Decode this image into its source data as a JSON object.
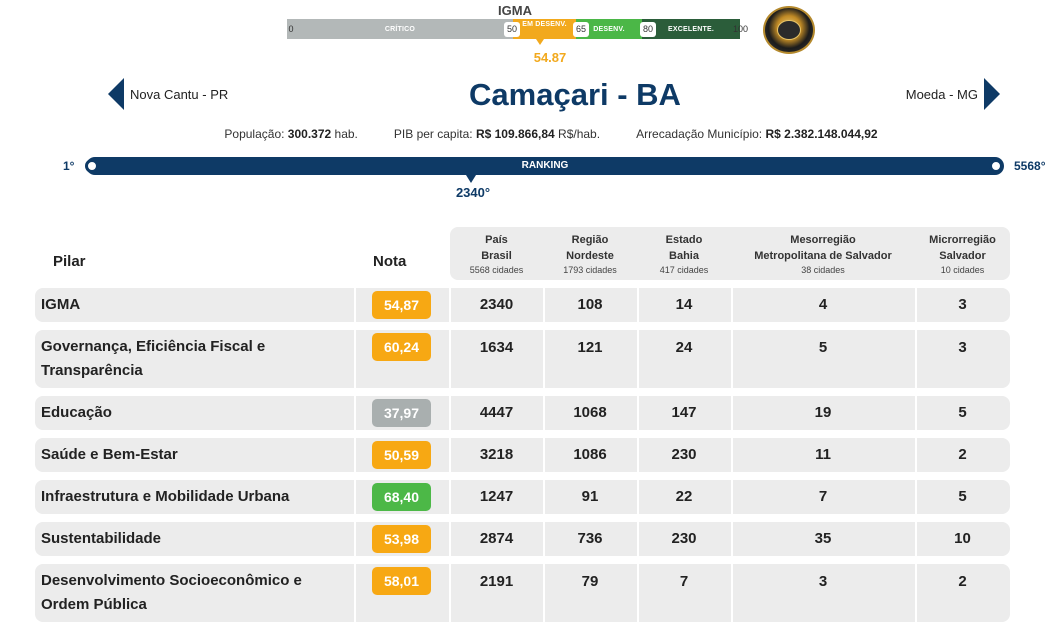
{
  "scale": {
    "title": "IGMA",
    "segments": {
      "critico": "CRÍTICO",
      "em_desenv": "EM DESENV.",
      "desenv": "DESENV.",
      "excelente": "EXCELENTE."
    },
    "ticks": [
      "0",
      "50",
      "65",
      "80",
      "100"
    ],
    "value": "54.87",
    "value_fraction": 0.5487,
    "colors": {
      "critico": "#b3b8b8",
      "em_desenv": "#f2a91d",
      "desenv": "#4bb747",
      "excelente": "#2b5d3a"
    }
  },
  "seal_icon": "award-seal-icon",
  "nav": {
    "prev_label": "Nova Cantu - PR",
    "next_label": "Moeda - MG"
  },
  "title": "Camaçari - BA",
  "stats": {
    "populacao_label": "População:",
    "populacao_value": "300.372",
    "populacao_unit": "hab.",
    "pib_label": "PIB per capita:",
    "pib_value": "R$ 109.866,84",
    "pib_unit": "R$/hab.",
    "arrecadacao_label": "Arrecadação Município:",
    "arrecadacao_value": "R$ 2.382.148.044,92"
  },
  "ranking": {
    "label": "RANKING",
    "first": "1°",
    "last": "5568°",
    "position": "2340°"
  },
  "table": {
    "headers": {
      "pilar": "Pilar",
      "nota": "Nota",
      "columns": [
        {
          "l1": "País",
          "l2": "Brasil",
          "l3": "5568 cidades"
        },
        {
          "l1": "Região",
          "l2": "Nordeste",
          "l3": "1793 cidades"
        },
        {
          "l1": "Estado",
          "l2": "Bahia",
          "l3": "417 cidades"
        },
        {
          "l1": "Mesorregião",
          "l2": "Metropolitana de Salvador",
          "l3": "38 cidades"
        },
        {
          "l1": "Microrregião",
          "l2": "Salvador",
          "l3": "10 cidades"
        }
      ]
    },
    "rows": [
      {
        "label1": "IGMA",
        "label2": "",
        "nota": "54,87",
        "color": "#f7a813",
        "values": [
          "2340",
          "108",
          "14",
          "4",
          "3"
        ]
      },
      {
        "label1": "Governança, Eficiência Fiscal e",
        "label2": "Transparência",
        "nota": "60,24",
        "color": "#f7a813",
        "values": [
          "1634",
          "121",
          "24",
          "5",
          "3"
        ]
      },
      {
        "label1": "Educação",
        "label2": "",
        "nota": "37,97",
        "color": "#a9afaf",
        "values": [
          "4447",
          "1068",
          "147",
          "19",
          "5"
        ]
      },
      {
        "label1": "Saúde e Bem-Estar",
        "label2": "",
        "nota": "50,59",
        "color": "#f7a813",
        "values": [
          "3218",
          "1086",
          "230",
          "11",
          "2"
        ]
      },
      {
        "label1": "Infraestrutura e Mobilidade Urbana",
        "label2": "",
        "nota": "68,40",
        "color": "#4cb847",
        "values": [
          "1247",
          "91",
          "22",
          "7",
          "5"
        ]
      },
      {
        "label1": "Sustentabilidade",
        "label2": "",
        "nota": "53,98",
        "color": "#f7a813",
        "values": [
          "2874",
          "736",
          "230",
          "35",
          "10"
        ]
      },
      {
        "label1": "Desenvolvimento Socioeconômico e",
        "label2": "Ordem Pública",
        "nota": "58,01",
        "color": "#f7a813",
        "values": [
          "2191",
          "79",
          "7",
          "3",
          "2"
        ]
      }
    ]
  }
}
